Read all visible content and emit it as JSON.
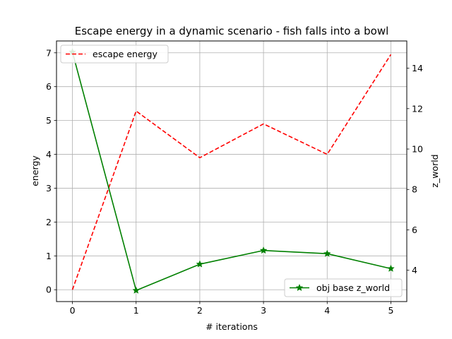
{
  "chart_data": {
    "type": "line",
    "title": "Escape energy in a dynamic scenario - fish falls into a bowl",
    "xlabel": "# iterations",
    "ylabel": "energy",
    "ylabel_right": "z_world",
    "x": [
      0,
      1,
      2,
      3,
      4,
      5
    ],
    "x_ticks": [
      "0",
      "1",
      "2",
      "3",
      "4",
      "5"
    ],
    "xlim": [
      -0.25,
      5.25
    ],
    "ylim": [
      -0.35,
      7.35
    ],
    "ylim_right": [
      2.45,
      15.35
    ],
    "y_ticks_left": [
      "0",
      "1",
      "2",
      "3",
      "4",
      "5",
      "6",
      "7"
    ],
    "y_ticks_right": [
      "4",
      "6",
      "8",
      "10",
      "12",
      "14"
    ],
    "grid": true,
    "series": [
      {
        "name": "escape energy",
        "axis": "left",
        "values": [
          0.0,
          5.28,
          3.9,
          4.9,
          4.0,
          6.95
        ],
        "color": "#ff0000",
        "line_style": "dashed",
        "marker": "none",
        "legend_position": "top-left"
      },
      {
        "name": "obj base z_world",
        "axis": "right",
        "values": [
          14.8,
          3.0,
          4.3,
          4.98,
          4.82,
          4.08
        ],
        "color": "#008000",
        "line_style": "solid",
        "marker": "star",
        "legend_position": "bottom-right"
      }
    ]
  }
}
